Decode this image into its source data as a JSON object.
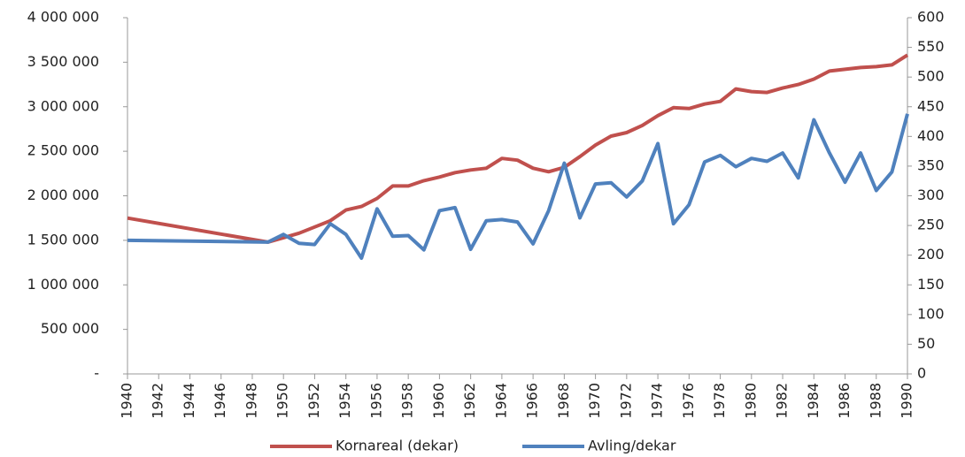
{
  "chart_data": {
    "type": "line",
    "x": [
      1940,
      1949,
      1950,
      1951,
      1952,
      1953,
      1954,
      1955,
      1956,
      1957,
      1958,
      1959,
      1960,
      1961,
      1962,
      1963,
      1964,
      1965,
      1966,
      1967,
      1968,
      1969,
      1970,
      1971,
      1972,
      1973,
      1974,
      1975,
      1976,
      1977,
      1978,
      1979,
      1980,
      1981,
      1982,
      1983,
      1984,
      1985,
      1986,
      1987,
      1988,
      1989,
      1990
    ],
    "xlim": [
      1940,
      1990
    ],
    "xticks": [
      1940,
      1942,
      1944,
      1946,
      1948,
      1950,
      1952,
      1954,
      1956,
      1958,
      1960,
      1962,
      1964,
      1966,
      1968,
      1970,
      1972,
      1974,
      1976,
      1978,
      1980,
      1982,
      1984,
      1986,
      1988,
      1990
    ],
    "ylim": [
      0,
      4000000
    ],
    "yticks": [
      {
        "value": 0,
        "label": "-"
      },
      {
        "value": 500000,
        "label": "500 000"
      },
      {
        "value": 1000000,
        "label": "1 000 000"
      },
      {
        "value": 1500000,
        "label": "1 500 000"
      },
      {
        "value": 2000000,
        "label": "2 000 000"
      },
      {
        "value": 2500000,
        "label": "2 500 000"
      },
      {
        "value": 3000000,
        "label": "3 000 000"
      },
      {
        "value": 3500000,
        "label": "3 500 000"
      },
      {
        "value": 4000000,
        "label": "4 000 000"
      }
    ],
    "y2lim": [
      0,
      600
    ],
    "y2ticks": [
      0,
      50,
      100,
      150,
      200,
      250,
      300,
      350,
      400,
      450,
      500,
      550,
      600
    ],
    "legend": "bottom",
    "series": [
      {
        "name": "Kornareal (dekar)",
        "color": "#c0504d",
        "values": [
          1750000,
          1480000,
          1530000,
          1580000,
          1650000,
          1720000,
          1840000,
          1880000,
          1970000,
          2110000,
          2110000,
          2170000,
          2210000,
          2260000,
          2290000,
          2310000,
          2420000,
          2400000,
          2310000,
          2270000,
          2320000,
          2440000,
          2570000,
          2670000,
          2710000,
          2790000,
          2900000,
          2990000,
          2980000,
          3030000,
          3060000,
          3200000,
          3170000,
          3160000,
          3210000,
          3250000,
          3310000,
          3400000,
          3420000,
          3440000,
          3450000,
          3470000,
          3580000
        ]
      },
      {
        "name": "Avling/dekar",
        "color": "#4f81bd",
        "axis": "y2",
        "values": [
          225,
          222,
          235,
          220,
          218,
          253,
          235,
          195,
          278,
          232,
          233,
          209,
          275,
          280,
          210,
          258,
          260,
          256,
          219,
          275,
          355,
          263,
          320,
          322,
          298,
          325,
          388,
          253,
          285,
          357,
          368,
          349,
          363,
          358,
          372,
          330,
          428,
          372,
          323,
          372,
          309,
          340,
          438
        ]
      }
    ]
  }
}
